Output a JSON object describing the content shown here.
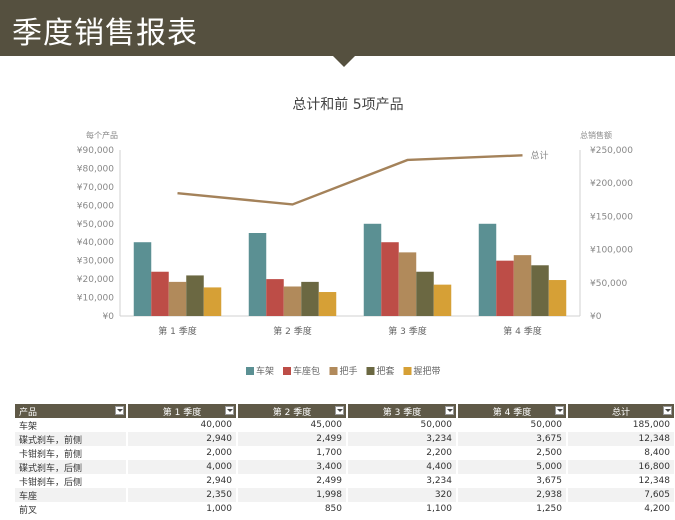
{
  "header": {
    "title": "季度销售报表"
  },
  "chart_data": {
    "type": "bar",
    "title": "总计和前 5项产品",
    "y_left_label": "每个产品",
    "y_right_label": "总销售额",
    "categories": [
      "第 1 季度",
      "第 2 季度",
      "第 3 季度",
      "第 4 季度"
    ],
    "y_left_ticks": [
      "¥0",
      "¥10,000",
      "¥20,000",
      "¥30,000",
      "¥40,000",
      "¥50,000",
      "¥60,000",
      "¥70,000",
      "¥80,000",
      "¥90,000"
    ],
    "y_right_ticks": [
      "¥0",
      "¥50,000",
      "¥100,000",
      "¥150,000",
      "¥200,000",
      "¥250,000"
    ],
    "ylim_left": [
      0,
      90000
    ],
    "ylim_right": [
      0,
      250000
    ],
    "series": [
      {
        "name": "车架",
        "color": "#5b9093",
        "values": [
          40000,
          45000,
          50000,
          50000
        ]
      },
      {
        "name": "车座包",
        "color": "#bd4d47",
        "values": [
          24000,
          20000,
          40000,
          30000
        ]
      },
      {
        "name": "把手",
        "color": "#b18a5b",
        "values": [
          18500,
          16000,
          34500,
          33000
        ]
      },
      {
        "name": "把套",
        "color": "#6b6842",
        "values": [
          22000,
          18500,
          24000,
          27500
        ]
      },
      {
        "name": "握把带",
        "color": "#d6a036",
        "values": [
          15500,
          13000,
          17000,
          19500
        ]
      }
    ],
    "line": {
      "name": "总计",
      "color": "#a4825a",
      "values": [
        185000,
        168000,
        235000,
        242000
      ]
    },
    "legend_position": "bottom",
    "grid": false
  },
  "table": {
    "headers": [
      "产品",
      "第 1 季度",
      "第 2 季度",
      "第 3 季度",
      "第 4 季度",
      "总计"
    ],
    "rows": [
      [
        "车架",
        "40,000",
        "45,000",
        "50,000",
        "50,000",
        "185,000"
      ],
      [
        "碟式刹车，前侧",
        "2,940",
        "2,499",
        "3,234",
        "3,675",
        "12,348"
      ],
      [
        "卡钳刹车，前侧",
        "2,000",
        "1,700",
        "2,200",
        "2,500",
        "8,400"
      ],
      [
        "碟式刹车，后侧",
        "4,000",
        "3,400",
        "4,400",
        "5,000",
        "16,800"
      ],
      [
        "卡钳刹车，后侧",
        "2,940",
        "2,499",
        "3,234",
        "3,675",
        "12,348"
      ],
      [
        "车座",
        "2,350",
        "1,998",
        "320",
        "2,938",
        "7,605"
      ],
      [
        "前叉",
        "1,000",
        "850",
        "1,100",
        "1,250",
        "4,200"
      ]
    ]
  }
}
